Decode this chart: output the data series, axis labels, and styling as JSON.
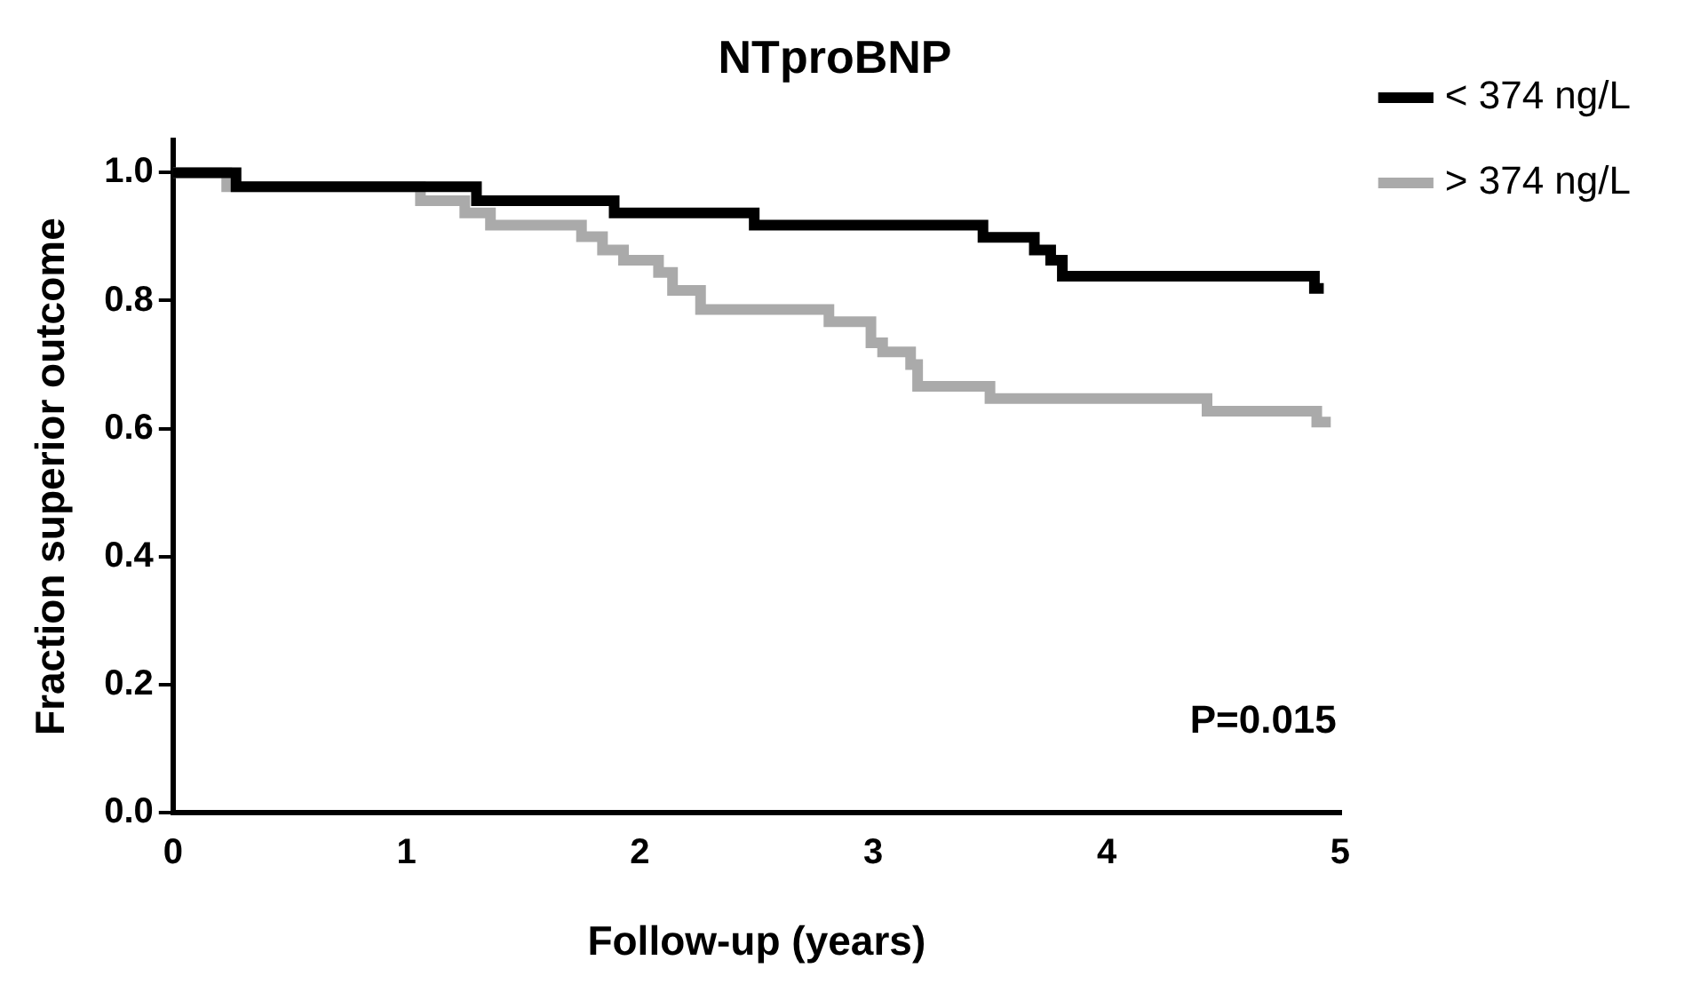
{
  "chart_data": {
    "type": "step",
    "title": "NTproBNP",
    "xlabel": "Follow-up (years)",
    "ylabel": "Fraction superior outcome",
    "xlim": [
      0,
      5
    ],
    "xticks": [
      0,
      1,
      2,
      3,
      4,
      5
    ],
    "ylim": [
      0,
      1.05
    ],
    "yticks": [
      {
        "value": 0,
        "label": "0.0"
      },
      {
        "value": 0.2,
        "label": "0.2"
      },
      {
        "value": 0.4,
        "label": "0.4"
      },
      {
        "value": 0.6,
        "label": "0.6"
      },
      {
        "value": 0.8,
        "label": "0.8"
      },
      {
        "value": 1,
        "label": "1.0"
      }
    ],
    "grid": false,
    "legend": "right",
    "line_style": "solid",
    "marker": "none",
    "series": [
      {
        "name": "< 374 ng/L",
        "color": "#000000",
        "x": [
          0,
          0.27,
          1.3,
          1.89,
          2.49,
          3.47,
          3.69,
          3.76,
          3.81,
          4.89,
          4.93
        ],
        "values": [
          1,
          0.978,
          0.956,
          0.937,
          0.918,
          0.899,
          0.879,
          0.863,
          0.838,
          0.819,
          0.819
        ]
      },
      {
        "name": "> 374 ng/L",
        "color": "#aaaaaa",
        "x": [
          0,
          0.23,
          1.06,
          1.25,
          1.36,
          1.75,
          1.84,
          1.93,
          2.08,
          2.14,
          2.26,
          2.81,
          2.99,
          3.04,
          3.16,
          3.19,
          3.5,
          4.43,
          4.9,
          4.96
        ],
        "values": [
          1,
          0.978,
          0.956,
          0.937,
          0.918,
          0.9,
          0.879,
          0.863,
          0.844,
          0.816,
          0.786,
          0.767,
          0.734,
          0.72,
          0.7,
          0.666,
          0.647,
          0.627,
          0.61,
          0.61
        ]
      }
    ],
    "annotations": [
      "P=0.015"
    ]
  }
}
